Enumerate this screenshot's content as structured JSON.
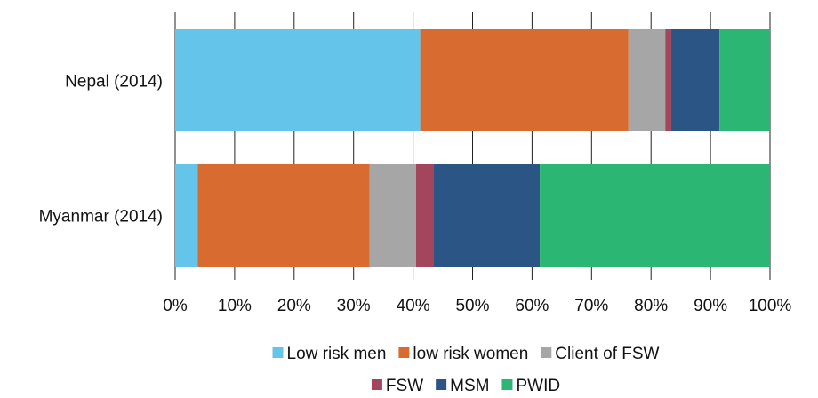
{
  "chart_data": {
    "type": "bar",
    "orientation": "horizontal",
    "stacked": true,
    "percent": true,
    "categories": [
      "Nepal (2014)",
      "Myanmar (2014)"
    ],
    "series": [
      {
        "name": "Low risk men",
        "values": [
          41.2,
          3.8
        ]
      },
      {
        "name": "low risk women",
        "values": [
          35.0,
          28.9
        ]
      },
      {
        "name": "Client of FSW",
        "values": [
          6.2,
          7.8
        ]
      },
      {
        "name": "FSW",
        "values": [
          1.0,
          3.0
        ]
      },
      {
        "name": "MSM",
        "values": [
          8.1,
          17.8
        ]
      },
      {
        "name": "PWID",
        "values": [
          8.5,
          38.7
        ]
      }
    ],
    "colors": [
      "#65c4ea",
      "#d86b2f",
      "#a6a6a6",
      "#a4455e",
      "#2a5584",
      "#2bb673"
    ],
    "xlim": [
      0,
      100
    ],
    "xticks": [
      "0%",
      "10%",
      "20%",
      "30%",
      "40%",
      "50%",
      "60%",
      "70%",
      "80%",
      "90%",
      "100%"
    ],
    "title": "",
    "xlabel": "",
    "ylabel": "",
    "grid": "vertical",
    "legend": "bottom"
  }
}
